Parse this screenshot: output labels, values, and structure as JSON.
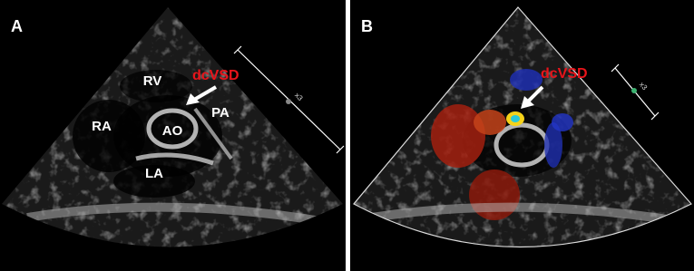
{
  "panels": [
    {
      "label": "A",
      "annotations": [
        "RV",
        "RA",
        "AO",
        "PA",
        "LA"
      ],
      "highlight": "dcVSD",
      "scale": "x3"
    },
    {
      "label": "B",
      "highlight": "dcVSD",
      "scale": "x3"
    }
  ]
}
